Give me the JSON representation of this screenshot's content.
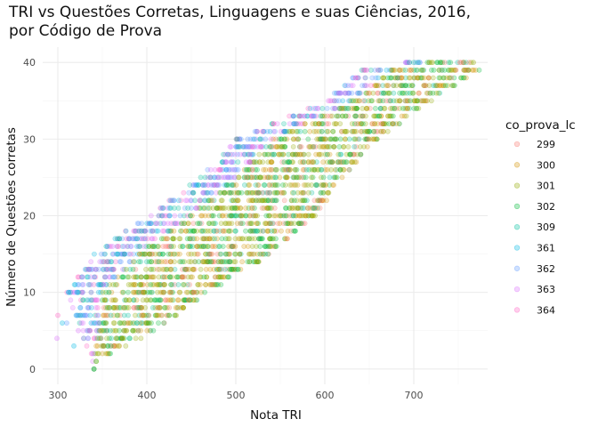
{
  "chart_data": {
    "type": "scatter",
    "title_line1": "TRI vs Questões Corretas, Linguagens e suas Ciências, 2016,",
    "title_line2": "por Código de Prova",
    "xlabel": "Nota TRI",
    "ylabel": "Número de Questões corretas",
    "xlim": [
      283,
      783
    ],
    "ylim": [
      -2,
      42
    ],
    "x_ticks": [
      300,
      400,
      500,
      600,
      700
    ],
    "y_ticks": [
      0,
      10,
      20,
      30,
      40
    ],
    "grid": true,
    "legend_position": "right",
    "legend_title": "co_prova_lc",
    "point_opacity": 0.25,
    "series": [
      {
        "name": "299",
        "color": "#F8766D"
      },
      {
        "name": "300",
        "color": "#D39200"
      },
      {
        "name": "301",
        "color": "#93AA00"
      },
      {
        "name": "302",
        "color": "#00BA38"
      },
      {
        "name": "309",
        "color": "#00C19F"
      },
      {
        "name": "361",
        "color": "#00B9E3"
      },
      {
        "name": "362",
        "color": "#619CFF"
      },
      {
        "name": "363",
        "color": "#DB72FB"
      },
      {
        "name": "364",
        "color": "#FF61C3"
      }
    ],
    "relationship": {
      "description_points": [
        {
          "y": 0,
          "x_min": 338,
          "x_max": 342
        },
        {
          "y": 1,
          "x_min": 338,
          "x_max": 345
        },
        {
          "y": 5,
          "x_min": 325,
          "x_max": 410
        },
        {
          "y": 10,
          "x_min": 310,
          "x_max": 470
        },
        {
          "y": 15,
          "x_min": 340,
          "x_max": 540
        },
        {
          "y": 20,
          "x_min": 400,
          "x_max": 590
        },
        {
          "y": 25,
          "x_min": 460,
          "x_max": 620
        },
        {
          "y": 30,
          "x_min": 500,
          "x_max": 660
        },
        {
          "y": 35,
          "x_min": 600,
          "x_max": 720
        },
        {
          "y": 39,
          "x_min": 640,
          "x_max": 775
        },
        {
          "y": 40,
          "x_min": 690,
          "x_max": 770
        }
      ],
      "outliers": [
        {
          "x": 300,
          "y": 7,
          "series": "364"
        },
        {
          "x": 299,
          "y": 4,
          "series": "363"
        },
        {
          "x": 305,
          "y": 6,
          "series": "361"
        },
        {
          "x": 310,
          "y": 6,
          "series": "362"
        },
        {
          "x": 318,
          "y": 3,
          "series": "361"
        },
        {
          "x": 323,
          "y": 5,
          "series": "363"
        },
        {
          "x": 760,
          "y": 39,
          "series": "299"
        },
        {
          "x": 767,
          "y": 40,
          "series": "301"
        },
        {
          "x": 695,
          "y": 40,
          "series": "309"
        }
      ]
    }
  }
}
